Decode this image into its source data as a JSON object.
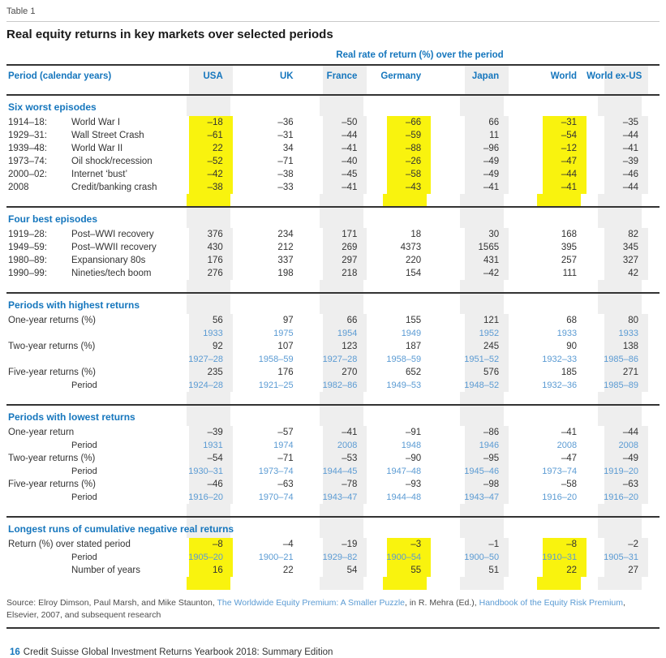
{
  "meta": {
    "table_label": "Table 1",
    "title": "Real equity returns in key markets over selected periods"
  },
  "colors": {
    "accent_blue": "#1576bd",
    "light_blue": "#5b9bd3",
    "highlight_yellow": "#f9f30e",
    "stripe_gray": "#eeeeee"
  },
  "table": {
    "group_header": "Real rate of return (%) over the period",
    "first_col_header": "Period (calendar years)",
    "columns": [
      "USA",
      "UK",
      "France",
      "Germany",
      "Japan",
      "World",
      "World ex-US"
    ],
    "striped_columns": [
      0,
      2,
      4,
      6
    ],
    "sections": [
      {
        "title": "Six worst episodes",
        "highlight": [
          0,
          3,
          5
        ],
        "rows": [
          {
            "date": "1914–18:",
            "desc": "World War I",
            "values": [
              "–18",
              "–36",
              "–50",
              "–66",
              "66",
              "–31",
              "–35"
            ]
          },
          {
            "date": "1929–31:",
            "desc": "Wall Street Crash",
            "values": [
              "–61",
              "–31",
              "–44",
              "–59",
              "11",
              "–54",
              "–44"
            ]
          },
          {
            "date": "1939–48:",
            "desc": "World War II",
            "values": [
              "22",
              "34",
              "–41",
              "–88",
              "–96",
              "–12",
              "–41"
            ]
          },
          {
            "date": "1973–74:",
            "desc": "Oil shock/recession",
            "values": [
              "–52",
              "–71",
              "–40",
              "–26",
              "–49",
              "–47",
              "–39"
            ]
          },
          {
            "date": "2000–02:",
            "desc": "Internet ‘bust’",
            "values": [
              "–42",
              "–38",
              "–45",
              "–58",
              "–49",
              "–44",
              "–46"
            ]
          },
          {
            "date": "2008",
            "desc": "Credit/banking crash",
            "values": [
              "–38",
              "–33",
              "–41",
              "–43",
              "–41",
              "–41",
              "–44"
            ]
          }
        ]
      },
      {
        "title": "Four best episodes",
        "highlight": [],
        "rows": [
          {
            "date": "1919–28:",
            "desc": "Post–WWI recovery",
            "values": [
              "376",
              "234",
              "171",
              "18",
              "30",
              "168",
              "82"
            ]
          },
          {
            "date": "1949–59:",
            "desc": "Post–WWII recovery",
            "values": [
              "430",
              "212",
              "269",
              "4373",
              "1565",
              "395",
              "345"
            ]
          },
          {
            "date": "1980–89:",
            "desc": "Expansionary 80s",
            "values": [
              "176",
              "337",
              "297",
              "220",
              "431",
              "257",
              "327"
            ]
          },
          {
            "date": "1990–99:",
            "desc": "Nineties/tech boom",
            "values": [
              "276",
              "198",
              "218",
              "154",
              "–42",
              "111",
              "42"
            ]
          }
        ]
      },
      {
        "title": "Periods with highest returns",
        "highlight": [],
        "rows": [
          {
            "label": "One-year returns (%)",
            "values": [
              "56",
              "97",
              "66",
              "155",
              "121",
              "68",
              "80"
            ]
          },
          {
            "sublabel": "",
            "blue": true,
            "values": [
              "1933",
              "1975",
              "1954",
              "1949",
              "1952",
              "1933",
              "1933"
            ]
          },
          {
            "label": "Two-year returns (%)",
            "values": [
              "92",
              "107",
              "123",
              "187",
              "245",
              "90",
              "138"
            ]
          },
          {
            "sublabel": "",
            "blue": true,
            "values": [
              "1927–28",
              "1958–59",
              "1927–28",
              "1958–59",
              "1951–52",
              "1932–33",
              "1985–86"
            ]
          },
          {
            "label": "Five-year returns (%)",
            "values": [
              "235",
              "176",
              "270",
              "652",
              "576",
              "185",
              "271"
            ]
          },
          {
            "sublabel": "Period",
            "blue": true,
            "values": [
              "1924–28",
              "1921–25",
              "1982–86",
              "1949–53",
              "1948–52",
              "1932–36",
              "1985–89"
            ]
          }
        ]
      },
      {
        "title": "Periods with lowest returns",
        "highlight": [],
        "rows": [
          {
            "label": "One-year return",
            "values": [
              "–39",
              "–57",
              "–41",
              "–91",
              "–86",
              "–41",
              "–44"
            ]
          },
          {
            "sublabel": "Period",
            "blue": true,
            "values": [
              "1931",
              "1974",
              "2008",
              "1948",
              "1946",
              "2008",
              "2008"
            ]
          },
          {
            "label": "Two-year returns (%)",
            "values": [
              "–54",
              "–71",
              "–53",
              "–90",
              "–95",
              "–47",
              "–49"
            ]
          },
          {
            "sublabel": "Period",
            "blue": true,
            "values": [
              "1930–31",
              "1973–74",
              "1944–45",
              "1947–48",
              "1945–46",
              "1973–74",
              "1919–20"
            ]
          },
          {
            "label": "Five-year returns (%)",
            "values": [
              "–46",
              "–63",
              "–78",
              "–93",
              "–98",
              "–58",
              "–63"
            ]
          },
          {
            "sublabel": "Period",
            "blue": true,
            "values": [
              "1916–20",
              "1970–74",
              "1943–47",
              "1944–48",
              "1943–47",
              "1916–20",
              "1916–20"
            ]
          }
        ]
      },
      {
        "title": "Longest runs of cumulative negative real returns",
        "highlight": [
          0,
          3,
          5
        ],
        "rows": [
          {
            "label": "Return (%) over stated period",
            "values": [
              "–8",
              "–4",
              "–19",
              "–3",
              "–1",
              "–8",
              "–2"
            ]
          },
          {
            "sublabel": "Period",
            "blue": true,
            "values": [
              "1905–20",
              "1900–21",
              "1929–82",
              "1900–54",
              "1900–50",
              "1910–31",
              "1905–31"
            ]
          },
          {
            "sublabel": "Number of years",
            "values": [
              "16",
              "22",
              "54",
              "55",
              "51",
              "22",
              "27"
            ]
          }
        ]
      }
    ]
  },
  "source": {
    "prefix": "Source: Elroy Dimson, Paul Marsh, and Mike Staunton, ",
    "link1": "The Worldwide Equity Premium: A Smaller Puzzle",
    "mid": ", in R. Mehra (Ed.), ",
    "link2": "Handbook of the Equity Risk Premium",
    "suffix": ", Elsevier, 2007, and subsequent research"
  },
  "footer": {
    "page_number": "16",
    "text": "Credit Suisse Global Investment Returns Yearbook 2018: Summary Edition"
  }
}
